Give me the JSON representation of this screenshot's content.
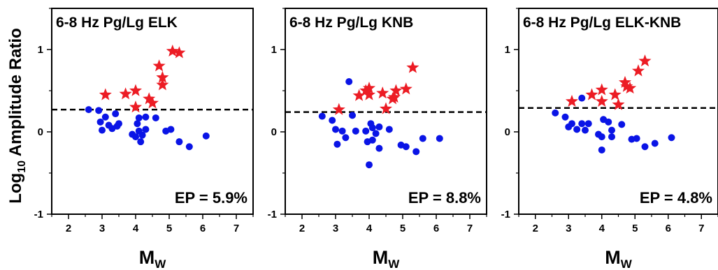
{
  "figure": {
    "ylabel": {
      "prefix": "Log",
      "sub": "10",
      "suffix": " Amplitude Ratio"
    },
    "colors": {
      "earthquake": "#0a14e6",
      "explosion": "#ec1c24",
      "threshold": "#000000",
      "axes": "#000000"
    }
  },
  "chart_data": [
    {
      "type": "scatter",
      "title": "6-8 Hz Pg/Lg   ELK",
      "ep_text": "EP = 5.9%",
      "xlabel": {
        "main": "M",
        "sub": "W"
      },
      "xlim": [
        1.5,
        7.5
      ],
      "ylim": [
        -1,
        1.5
      ],
      "xticks": [
        "2",
        "3",
        "4",
        "5",
        "6",
        "7"
      ],
      "yticks": [
        "-1",
        "0",
        "1"
      ],
      "threshold": 0.27,
      "series": [
        {
          "marker": "circle",
          "color": "#0a14e6",
          "points": [
            [
              2.6,
              0.27
            ],
            [
              2.9,
              0.26
            ],
            [
              2.95,
              0.12
            ],
            [
              3.0,
              0.02
            ],
            [
              3.1,
              0.18
            ],
            [
              3.2,
              0.08
            ],
            [
              3.3,
              0.04
            ],
            [
              3.4,
              0.22
            ],
            [
              3.45,
              0.07
            ],
            [
              3.5,
              0.1
            ],
            [
              3.9,
              -0.03
            ],
            [
              4.0,
              -0.06
            ],
            [
              4.05,
              0.1
            ],
            [
              4.1,
              0.17
            ],
            [
              4.1,
              0.01
            ],
            [
              4.15,
              -0.12
            ],
            [
              4.2,
              -0.04
            ],
            [
              4.3,
              0.18
            ],
            [
              4.3,
              0.03
            ],
            [
              4.6,
              0.17
            ],
            [
              4.9,
              0.01
            ],
            [
              5.05,
              0.03
            ],
            [
              5.3,
              -0.12
            ],
            [
              5.6,
              -0.18
            ],
            [
              6.1,
              -0.05
            ]
          ]
        },
        {
          "marker": "star",
          "color": "#ec1c24",
          "points": [
            [
              3.1,
              0.45
            ],
            [
              3.7,
              0.46
            ],
            [
              4.0,
              0.5
            ],
            [
              4.0,
              0.3
            ],
            [
              4.4,
              0.4
            ],
            [
              4.5,
              0.35
            ],
            [
              4.7,
              0.8
            ],
            [
              4.8,
              0.66
            ],
            [
              4.8,
              0.57
            ],
            [
              5.1,
              0.98
            ],
            [
              5.3,
              0.96
            ]
          ]
        }
      ]
    },
    {
      "type": "scatter",
      "title": "6-8 Hz Pg/Lg   KNB",
      "ep_text": "EP = 8.8%",
      "xlabel": {
        "main": "M",
        "sub": "W"
      },
      "xlim": [
        1.5,
        7.5
      ],
      "ylim": [
        -1,
        1.5
      ],
      "xticks": [
        "2",
        "3",
        "4",
        "5",
        "6",
        "7"
      ],
      "yticks": [
        "-1",
        "0",
        "1"
      ],
      "threshold": 0.24,
      "series": [
        {
          "marker": "circle",
          "color": "#0a14e6",
          "points": [
            [
              2.6,
              0.19
            ],
            [
              2.9,
              0.14
            ],
            [
              3.0,
              0.03
            ],
            [
              3.05,
              -0.15
            ],
            [
              3.2,
              0.01
            ],
            [
              3.3,
              -0.07
            ],
            [
              3.4,
              0.61
            ],
            [
              3.5,
              0.2
            ],
            [
              3.6,
              0.01
            ],
            [
              3.9,
              0.01
            ],
            [
              3.95,
              -0.12
            ],
            [
              4.0,
              -0.4
            ],
            [
              4.05,
              0.1
            ],
            [
              4.1,
              0.05
            ],
            [
              4.1,
              -0.1
            ],
            [
              4.2,
              -0.02
            ],
            [
              4.3,
              0.06
            ],
            [
              4.3,
              -0.2
            ],
            [
              4.6,
              0.03
            ],
            [
              4.95,
              -0.16
            ],
            [
              5.1,
              -0.18
            ],
            [
              5.4,
              -0.24
            ],
            [
              5.6,
              -0.08
            ],
            [
              6.1,
              -0.08
            ]
          ]
        },
        {
          "marker": "star",
          "color": "#ec1c24",
          "points": [
            [
              3.1,
              0.27
            ],
            [
              3.7,
              0.44
            ],
            [
              3.9,
              0.5
            ],
            [
              4.0,
              0.53
            ],
            [
              4.0,
              0.45
            ],
            [
              4.4,
              0.47
            ],
            [
              4.5,
              0.28
            ],
            [
              4.7,
              0.4
            ],
            [
              4.75,
              0.42
            ],
            [
              4.8,
              0.5
            ],
            [
              5.1,
              0.52
            ],
            [
              5.3,
              0.78
            ]
          ]
        }
      ]
    },
    {
      "type": "scatter",
      "title": "6-8 Hz Pg/Lg ELK-KNB",
      "ep_text": "EP = 4.8%",
      "xlabel": {
        "main": "M",
        "sub": "W"
      },
      "xlim": [
        1.5,
        7.5
      ],
      "ylim": [
        -1,
        1.5
      ],
      "xticks": [
        "2",
        "3",
        "4",
        "5",
        "6",
        "7"
      ],
      "yticks": [
        "-1",
        "0",
        "1"
      ],
      "threshold": 0.29,
      "series": [
        {
          "marker": "circle",
          "color": "#0a14e6",
          "points": [
            [
              2.6,
              0.23
            ],
            [
              2.9,
              0.18
            ],
            [
              3.0,
              0.06
            ],
            [
              3.1,
              0.1
            ],
            [
              3.25,
              0.03
            ],
            [
              3.4,
              0.1
            ],
            [
              3.4,
              0.41
            ],
            [
              3.5,
              0.02
            ],
            [
              3.6,
              0.1
            ],
            [
              3.9,
              -0.03
            ],
            [
              4.0,
              -0.06
            ],
            [
              4.0,
              -0.22
            ],
            [
              4.05,
              0.15
            ],
            [
              4.2,
              0.12
            ],
            [
              4.3,
              0.02
            ],
            [
              4.3,
              -0.06
            ],
            [
              4.6,
              0.09
            ],
            [
              4.9,
              -0.09
            ],
            [
              5.05,
              -0.08
            ],
            [
              5.3,
              -0.18
            ],
            [
              5.6,
              -0.14
            ],
            [
              6.1,
              -0.07
            ]
          ]
        },
        {
          "marker": "star",
          "color": "#ec1c24",
          "points": [
            [
              3.1,
              0.37
            ],
            [
              3.7,
              0.45
            ],
            [
              4.0,
              0.51
            ],
            [
              4.0,
              0.37
            ],
            [
              4.4,
              0.45
            ],
            [
              4.5,
              0.33
            ],
            [
              4.7,
              0.6
            ],
            [
              4.75,
              0.55
            ],
            [
              4.85,
              0.53
            ],
            [
              5.1,
              0.74
            ],
            [
              5.3,
              0.86
            ]
          ]
        }
      ]
    }
  ]
}
